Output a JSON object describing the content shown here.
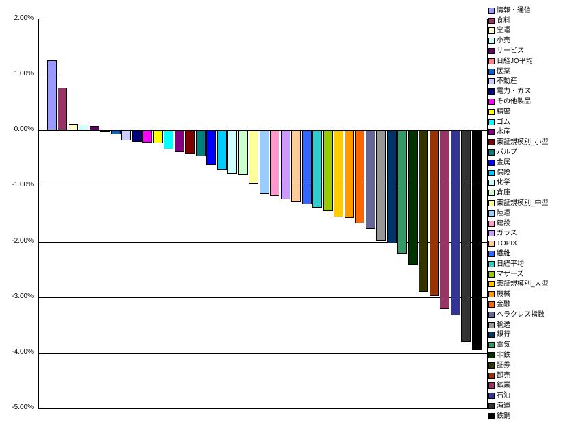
{
  "chart_data": {
    "type": "bar",
    "title": "",
    "xlabel": "",
    "ylabel": "",
    "value_unit": "%",
    "ylim": [
      -5.0,
      2.0
    ],
    "gridline_interval": 1.0,
    "grid": true,
    "legend_position": "right",
    "ytick_labels": [
      "2.00%",
      "1.00%",
      "0.00%",
      "-1.00%",
      "-2.00%",
      "-3.00%",
      "-4.00%",
      "-5.00%"
    ],
    "ytick_values": [
      2.0,
      1.0,
      0.0,
      -1.0,
      -2.0,
      -3.0,
      -4.0,
      -5.0
    ],
    "series": [
      {
        "name": "情報・通信",
        "value": 1.26,
        "color": "#9999FF"
      },
      {
        "name": "食料",
        "value": 0.77,
        "color": "#993366"
      },
      {
        "name": "空運",
        "value": 0.11,
        "color": "#FFFFCC"
      },
      {
        "name": "小売",
        "value": 0.1,
        "color": "#CCFFFF"
      },
      {
        "name": "サービス",
        "value": 0.07,
        "color": "#660066"
      },
      {
        "name": "日経JQ平均",
        "value": -0.03,
        "color": "#FF8080"
      },
      {
        "name": "医薬",
        "value": -0.07,
        "color": "#0066CC"
      },
      {
        "name": "不動産",
        "value": -0.18,
        "color": "#CCCCFF"
      },
      {
        "name": "電力・ガス",
        "value": -0.21,
        "color": "#000080"
      },
      {
        "name": "その他製品",
        "value": -0.22,
        "color": "#FF00FF"
      },
      {
        "name": "精密",
        "value": -0.23,
        "color": "#FFFF00"
      },
      {
        "name": "ゴム",
        "value": -0.35,
        "color": "#00FFFF"
      },
      {
        "name": "水産",
        "value": -0.39,
        "color": "#800080"
      },
      {
        "name": "東証規模別_小型",
        "value": -0.43,
        "color": "#800000"
      },
      {
        "name": "パルプ",
        "value": -0.47,
        "color": "#008080"
      },
      {
        "name": "金属",
        "value": -0.63,
        "color": "#0000FF"
      },
      {
        "name": "保険",
        "value": -0.72,
        "color": "#00CCFF"
      },
      {
        "name": "化学",
        "value": -0.79,
        "color": "#CCFFFF"
      },
      {
        "name": "倉庫",
        "value": -0.8,
        "color": "#CCFFCC"
      },
      {
        "name": "東証規模別_中型",
        "value": -0.96,
        "color": "#FFFF99"
      },
      {
        "name": "陸運",
        "value": -1.14,
        "color": "#99CCFF"
      },
      {
        "name": "建設",
        "value": -1.18,
        "color": "#FF99CC"
      },
      {
        "name": "ガラス",
        "value": -1.24,
        "color": "#CC99FF"
      },
      {
        "name": "TOPIX",
        "value": -1.29,
        "color": "#FFCC99"
      },
      {
        "name": "繊維",
        "value": -1.33,
        "color": "#3366FF"
      },
      {
        "name": "日経平均",
        "value": -1.39,
        "color": "#33CCCC"
      },
      {
        "name": "マザーズ",
        "value": -1.45,
        "color": "#99CC00"
      },
      {
        "name": "東証規模別_大型",
        "value": -1.56,
        "color": "#FFCC00"
      },
      {
        "name": "機械",
        "value": -1.58,
        "color": "#FF9900"
      },
      {
        "name": "金融",
        "value": -1.67,
        "color": "#FF6600"
      },
      {
        "name": "ヘラクレス指数",
        "value": -1.77,
        "color": "#666699"
      },
      {
        "name": "輸送",
        "value": -1.99,
        "color": "#969696"
      },
      {
        "name": "銀行",
        "value": -2.03,
        "color": "#003366"
      },
      {
        "name": "電気",
        "value": -2.22,
        "color": "#339966"
      },
      {
        "name": "非鉄",
        "value": -2.43,
        "color": "#003300"
      },
      {
        "name": "証券",
        "value": -2.91,
        "color": "#333300"
      },
      {
        "name": "卸売",
        "value": -2.98,
        "color": "#993300"
      },
      {
        "name": "鉱業",
        "value": -3.22,
        "color": "#993366"
      },
      {
        "name": "石油",
        "value": -3.33,
        "color": "#333399"
      },
      {
        "name": "海運",
        "value": -3.81,
        "color": "#333333"
      },
      {
        "name": "鉄鋼",
        "value": -3.96,
        "color": "#000000"
      }
    ],
    "colors": {
      "background": "#FFFFFF",
      "axis": "#000000",
      "gridline": "#000000",
      "text": "#000000"
    }
  }
}
